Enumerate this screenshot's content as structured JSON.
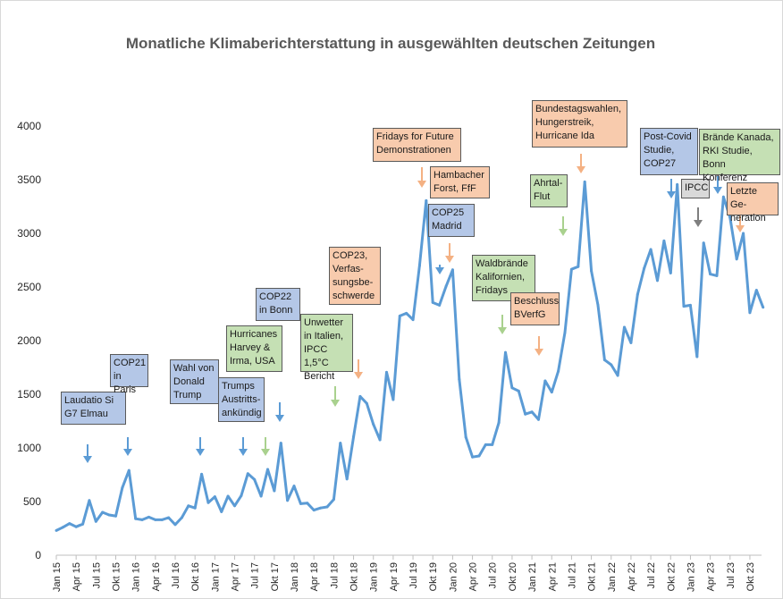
{
  "chart_data": {
    "type": "line",
    "title": "Monatliche Klimaberichterstattung in ausgewählten deutschen Zeitungen",
    "xlabel": "",
    "ylabel": "",
    "ylim": [
      0,
      4000
    ],
    "yticks": [
      0,
      500,
      1000,
      1500,
      2000,
      2500,
      3000,
      3500,
      4000
    ],
    "grid": false,
    "legend": "none",
    "line_color": "#5b9bd5",
    "x_tick_labels": [
      "Jan 15",
      "Apr 15",
      "Jul 15",
      "Okt 15",
      "Jan 16",
      "Apr 16",
      "Jul 16",
      "Okt 16",
      "Jan 17",
      "Apr 17",
      "Jul 17",
      "Okt 17",
      "Jan 18",
      "Apr 18",
      "Jul 18",
      "Okt 18",
      "Jan 19",
      "Apr 19",
      "Jul 19",
      "Okt 19",
      "Jan 20",
      "Apr 20",
      "Jul 20",
      "Okt 20",
      "Jan 21",
      "Apr 21",
      "Jul 21",
      "Okt 21",
      "Jan 22",
      "Apr 22",
      "Jul 22",
      "Okt 22",
      "Jan 23",
      "Apr 23",
      "Jul 23",
      "Okt 23"
    ],
    "series": [
      {
        "values": [
          230,
          260,
          295,
          265,
          290,
          510,
          315,
          400,
          375,
          365,
          630,
          790,
          340,
          330,
          355,
          330,
          330,
          350,
          285,
          350,
          460,
          440,
          755,
          490,
          545,
          405,
          550,
          460,
          555,
          760,
          705,
          550,
          800,
          600,
          1045,
          510,
          645,
          480,
          485,
          420,
          440,
          450,
          520,
          1045,
          710,
          1105,
          1480,
          1415,
          1220,
          1075,
          1705,
          1450,
          2230,
          2255,
          2195,
          2700,
          3305,
          2355,
          2330,
          2505,
          2660,
          1640,
          1100,
          915,
          925,
          1030,
          1030,
          1235,
          1890,
          1560,
          1530,
          1315,
          1335,
          1265,
          1625,
          1520,
          1715,
          2075,
          2665,
          2690,
          3480,
          2650,
          2330,
          1820,
          1775,
          1675,
          2125,
          1980,
          2430,
          2675,
          2850,
          2560,
          2930,
          2630,
          3455,
          2320,
          2330,
          1850,
          2910,
          2620,
          2605,
          3340,
          3145,
          2760,
          3000,
          2260,
          2470,
          2310
        ]
      }
    ],
    "annotations": [
      {
        "text": "Laudatio Si\nG7 Elmau",
        "color": "#b4c7e7",
        "arrow": "#5b9bd5"
      },
      {
        "text": "COP21\nin Paris",
        "color": "#b4c7e7",
        "arrow": "#5b9bd5"
      },
      {
        "text": "Wahl von\nDonald\nTrump",
        "color": "#b4c7e7",
        "arrow": "#5b9bd5"
      },
      {
        "text": "Trumps\nAustritts-\nankündig",
        "color": "#b4c7e7",
        "arrow": "#5b9bd5"
      },
      {
        "text": "Hurricanes\nHarvey &\nIrma, USA",
        "color": "#c5e0b4",
        "arrow": "#a9d18e"
      },
      {
        "text": "COP22\nin Bonn",
        "color": "#b4c7e7",
        "arrow": "#5b9bd5"
      },
      {
        "text": "Unwetter\nin Italien,\nIPCC 1,5°C\nBericht",
        "color": "#c5e0b4",
        "arrow": "#a9d18e"
      },
      {
        "text": "COP23,\nVerfas-\nsungsbe-\nschwerde",
        "color": "#f8cbad",
        "arrow": "#f4b183"
      },
      {
        "text": "Fridays for Future\nDemonstrationen",
        "color": "#f8cbad",
        "arrow": "#f4b183"
      },
      {
        "text": "Hambacher\nForst, FfF",
        "color": "#f8cbad",
        "arrow": "#f4b183"
      },
      {
        "text": "COP25\nMadrid",
        "color": "#b4c7e7",
        "arrow": "#5b9bd5"
      },
      {
        "text": "Waldbrände\nKalifornien,\nFridays",
        "color": "#c5e0b4",
        "arrow": "#a9d18e"
      },
      {
        "text": "Beschluss\nBVerfG",
        "color": "#f8cbad",
        "arrow": "#f4b183"
      },
      {
        "text": "Ahrtal-\nFlut",
        "color": "#c5e0b4",
        "arrow": "#a9d18e"
      },
      {
        "text": "Bundestagswahlen,\nHungerstreik,\nHurricane Ida",
        "color": "#f8cbad",
        "arrow": "#f4b183"
      },
      {
        "text": "Post-Covid\nStudie,\nCOP27",
        "color": "#b4c7e7",
        "arrow": "#5b9bd5"
      },
      {
        "text": "IPCC",
        "color": "#d9d9d9",
        "arrow": "#7f7f7f"
      },
      {
        "text": "Brände Kanada,\nRKI Studie, Bonn\nKonferenz",
        "color": "#c5e0b4",
        "arrow": "#5b9bd5"
      },
      {
        "text": "Letzte Ge-\nneration",
        "color": "#f8cbad",
        "arrow": "#f4b183"
      }
    ]
  }
}
